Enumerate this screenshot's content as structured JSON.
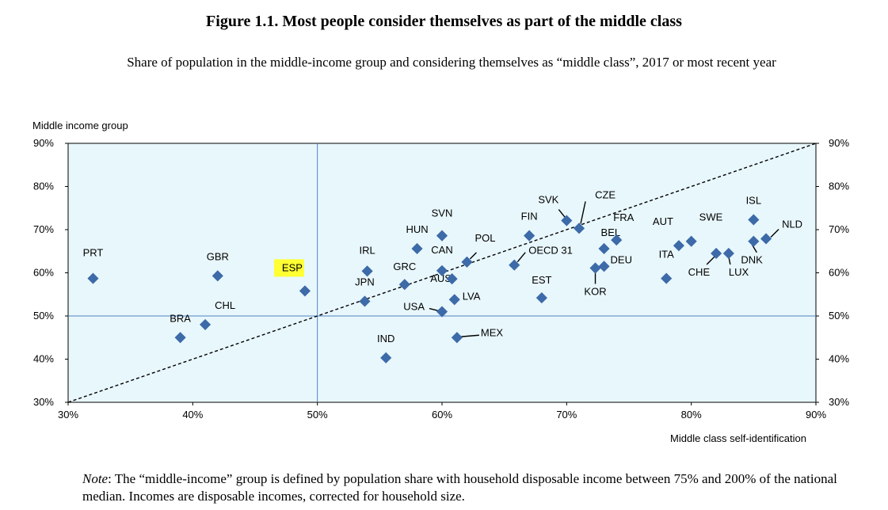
{
  "title": "Figure 1.1. Most people consider themselves as part of the middle class",
  "subtitle": "Share of population in the middle-income group and considering themselves as “middle class”, 2017 or most recent year",
  "note": {
    "label": "Note",
    "text": ": The “middle-income” group is defined by population share with household disposable income between 75% and 200% of the national median. Incomes are disposable incomes, corrected for household size."
  },
  "colors": {
    "plot_bg": "#e8f7fc",
    "marker": "#3d6aa8",
    "ref_line": "#4f82c2",
    "highlight": "#ffff33"
  },
  "chart_data": {
    "type": "scatter",
    "title": "Figure 1.1. Most people consider themselves as part of the middle class",
    "xlabel": "Middle class self-identification",
    "ylabel": "Middle income group",
    "xlim": [
      30,
      90
    ],
    "ylim": [
      30,
      90
    ],
    "xticks": [
      "30%",
      "40%",
      "50%",
      "60%",
      "70%",
      "80%",
      "90%"
    ],
    "yticks": [
      "30%",
      "40%",
      "50%",
      "60%",
      "70%",
      "80%",
      "90%"
    ],
    "tick_values": [
      30,
      40,
      50,
      60,
      70,
      80,
      90
    ],
    "reference_x": 50,
    "reference_y": 50,
    "diagonal": "45-degree line",
    "highlighted": "ESP",
    "points": [
      {
        "label": "PRT",
        "x": 32,
        "y": 58.7
      },
      {
        "label": "BRA",
        "x": 39,
        "y": 45
      },
      {
        "label": "CHL",
        "x": 41,
        "y": 48
      },
      {
        "label": "GBR",
        "x": 42,
        "y": 59.3
      },
      {
        "label": "ESP",
        "x": 49,
        "y": 55.8
      },
      {
        "label": "IRL",
        "x": 54,
        "y": 60.4
      },
      {
        "label": "JPN",
        "x": 53.8,
        "y": 53.4
      },
      {
        "label": "IND",
        "x": 55.5,
        "y": 40.3
      },
      {
        "label": "GRC",
        "x": 57,
        "y": 57.3
      },
      {
        "label": "HUN",
        "x": 58,
        "y": 65.6
      },
      {
        "label": "SVN",
        "x": 60,
        "y": 68.6
      },
      {
        "label": "CAN",
        "x": 60,
        "y": 60.5
      },
      {
        "label": "AUS",
        "x": 60.8,
        "y": 58.6
      },
      {
        "label": "USA",
        "x": 60,
        "y": 51
      },
      {
        "label": "LVA",
        "x": 61,
        "y": 53.8
      },
      {
        "label": "MEX",
        "x": 61.2,
        "y": 45
      },
      {
        "label": "POL",
        "x": 62,
        "y": 62.5
      },
      {
        "label": "OECD 31",
        "x": 65.8,
        "y": 61.8
      },
      {
        "label": "FIN",
        "x": 67,
        "y": 68.6
      },
      {
        "label": "EST",
        "x": 68,
        "y": 54.2
      },
      {
        "label": "SVK",
        "x": 70,
        "y": 72.1
      },
      {
        "label": "CZE",
        "x": 71,
        "y": 70.3
      },
      {
        "label": "KOR",
        "x": 72.3,
        "y": 61.1
      },
      {
        "label": "BEL",
        "x": 73,
        "y": 65.6
      },
      {
        "label": "FRA",
        "x": 74,
        "y": 67.6
      },
      {
        "label": "ITA",
        "x": 78,
        "y": 58.7
      },
      {
        "label": "AUT",
        "x": 79,
        "y": 66.3
      },
      {
        "label": "SWE",
        "x": 80,
        "y": 67.3
      },
      {
        "label": "CHE",
        "x": 82,
        "y": 64.5
      },
      {
        "label": "LUX",
        "x": 83,
        "y": 64.5
      },
      {
        "label": "ISL",
        "x": 85,
        "y": 72.3
      },
      {
        "label": "DNK",
        "x": 85,
        "y": 67.3
      },
      {
        "label": "NLD",
        "x": 86,
        "y": 67.9
      },
      {
        "label": "DEU",
        "x": 73,
        "y": 61.5
      }
    ]
  }
}
